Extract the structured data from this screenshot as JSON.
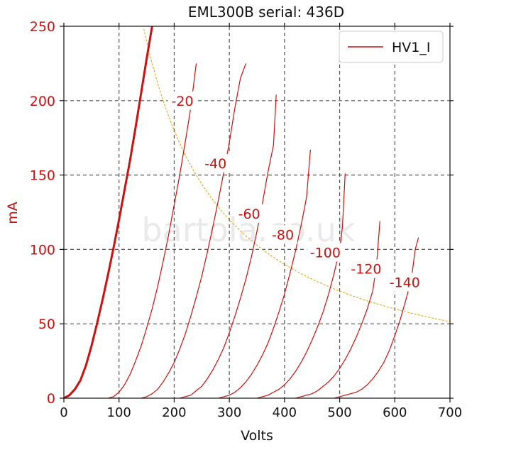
{
  "chart_data": {
    "type": "line",
    "title": "EML300B serial: 436D",
    "xlabel": "Volts",
    "ylabel": "mA",
    "xlim": [
      0,
      700
    ],
    "ylim": [
      0,
      250
    ],
    "xticks": [
      0,
      100,
      200,
      300,
      400,
      500,
      600,
      700
    ],
    "yticks": [
      0,
      50,
      100,
      150,
      200,
      250
    ],
    "grid": true,
    "legend": {
      "position": "top-right",
      "entries": [
        "HV1_I"
      ]
    },
    "watermark": "bartola.co.uk",
    "colors": {
      "curve": "#cc1111",
      "axis_text": "#cc1111",
      "load_line": "#e0a000",
      "grid": "#555555"
    },
    "series": [
      {
        "grid_voltage": "0",
        "label": "",
        "points": [
          [
            0,
            0
          ],
          [
            10,
            2
          ],
          [
            20,
            6
          ],
          [
            30,
            12
          ],
          [
            40,
            22
          ],
          [
            50,
            35
          ],
          [
            60,
            50
          ],
          [
            70,
            66
          ],
          [
            80,
            83
          ],
          [
            90,
            101
          ],
          [
            100,
            120
          ],
          [
            110,
            140
          ],
          [
            120,
            160
          ],
          [
            130,
            182
          ],
          [
            140,
            205
          ],
          [
            150,
            228
          ],
          [
            160,
            250
          ]
        ]
      },
      {
        "grid_voltage": "-20",
        "label": "-20",
        "points": [
          [
            80,
            0
          ],
          [
            90,
            1
          ],
          [
            100,
            4
          ],
          [
            110,
            9
          ],
          [
            120,
            16
          ],
          [
            130,
            25
          ],
          [
            140,
            35
          ],
          [
            150,
            47
          ],
          [
            160,
            60
          ],
          [
            170,
            75
          ],
          [
            180,
            92
          ],
          [
            190,
            110
          ],
          [
            200,
            130
          ],
          [
            210,
            150
          ],
          [
            220,
            172
          ],
          [
            230,
            195
          ],
          [
            240,
            225
          ]
        ]
      },
      {
        "grid_voltage": "-40",
        "label": "-40",
        "points": [
          [
            140,
            0
          ],
          [
            150,
            1
          ],
          [
            160,
            3
          ],
          [
            170,
            6
          ],
          [
            180,
            11
          ],
          [
            190,
            17
          ],
          [
            200,
            24
          ],
          [
            210,
            33
          ],
          [
            220,
            43
          ],
          [
            230,
            55
          ],
          [
            240,
            68
          ],
          [
            250,
            82
          ],
          [
            260,
            98
          ],
          [
            270,
            115
          ],
          [
            280,
            133
          ],
          [
            290,
            152
          ],
          [
            300,
            172
          ],
          [
            310,
            195
          ],
          [
            320,
            215
          ],
          [
            330,
            225
          ]
        ]
      },
      {
        "grid_voltage": "-60",
        "label": "-60",
        "points": [
          [
            210,
            0
          ],
          [
            220,
            1
          ],
          [
            230,
            2
          ],
          [
            240,
            5
          ],
          [
            250,
            8
          ],
          [
            260,
            13
          ],
          [
            270,
            19
          ],
          [
            280,
            26
          ],
          [
            290,
            34
          ],
          [
            300,
            44
          ],
          [
            310,
            55
          ],
          [
            320,
            67
          ],
          [
            330,
            80
          ],
          [
            340,
            95
          ],
          [
            350,
            112
          ],
          [
            360,
            131
          ],
          [
            370,
            152
          ],
          [
            380,
            170
          ],
          [
            385,
            204
          ]
        ]
      },
      {
        "grid_voltage": "-80",
        "label": "-80",
        "points": [
          [
            280,
            0
          ],
          [
            290,
            1
          ],
          [
            300,
            2
          ],
          [
            310,
            4
          ],
          [
            320,
            7
          ],
          [
            330,
            11
          ],
          [
            340,
            16
          ],
          [
            350,
            22
          ],
          [
            360,
            29
          ],
          [
            370,
            37
          ],
          [
            380,
            47
          ],
          [
            390,
            58
          ],
          [
            400,
            70
          ],
          [
            410,
            84
          ],
          [
            420,
            99
          ],
          [
            430,
            116
          ],
          [
            440,
            135
          ],
          [
            447,
            167
          ]
        ]
      },
      {
        "grid_voltage": "-100",
        "label": "-100",
        "points": [
          [
            350,
            0
          ],
          [
            360,
            1
          ],
          [
            370,
            2
          ],
          [
            380,
            4
          ],
          [
            390,
            6
          ],
          [
            400,
            9
          ],
          [
            410,
            13
          ],
          [
            420,
            18
          ],
          [
            430,
            24
          ],
          [
            440,
            31
          ],
          [
            450,
            39
          ],
          [
            460,
            48
          ],
          [
            470,
            58
          ],
          [
            480,
            70
          ],
          [
            490,
            84
          ],
          [
            500,
            100
          ],
          [
            505,
            115
          ],
          [
            510,
            151
          ]
        ]
      },
      {
        "grid_voltage": "-120",
        "label": "-120",
        "points": [
          [
            420,
            0
          ],
          [
            430,
            1
          ],
          [
            440,
            2
          ],
          [
            450,
            3
          ],
          [
            460,
            5
          ],
          [
            470,
            8
          ],
          [
            480,
            11
          ],
          [
            490,
            15
          ],
          [
            500,
            20
          ],
          [
            510,
            26
          ],
          [
            520,
            33
          ],
          [
            530,
            41
          ],
          [
            540,
            50
          ],
          [
            550,
            60
          ],
          [
            560,
            72
          ],
          [
            567,
            90
          ],
          [
            573,
            119
          ]
        ]
      },
      {
        "grid_voltage": "-140",
        "label": "-140",
        "points": [
          [
            490,
            0
          ],
          [
            500,
            1
          ],
          [
            510,
            2
          ],
          [
            520,
            3
          ],
          [
            530,
            4
          ],
          [
            540,
            6
          ],
          [
            550,
            9
          ],
          [
            560,
            13
          ],
          [
            570,
            18
          ],
          [
            580,
            24
          ],
          [
            590,
            32
          ],
          [
            600,
            42
          ],
          [
            610,
            53
          ],
          [
            620,
            66
          ],
          [
            630,
            80
          ],
          [
            637,
            100
          ],
          [
            643,
            108
          ]
        ]
      }
    ],
    "label_positions": [
      {
        "label": "-20",
        "x": 215,
        "y": 200
      },
      {
        "label": "-40",
        "x": 275,
        "y": 158
      },
      {
        "label": "-60",
        "x": 336,
        "y": 124
      },
      {
        "label": "-80",
        "x": 397,
        "y": 110
      },
      {
        "label": "-100",
        "x": 474,
        "y": 98
      },
      {
        "label": "-120",
        "x": 548,
        "y": 87
      },
      {
        "label": "-140",
        "x": 618,
        "y": 78
      }
    ],
    "load_line": {
      "name": "power-dissipation-hyperbola",
      "power_watts": 36,
      "x_range": [
        145,
        700
      ]
    }
  }
}
